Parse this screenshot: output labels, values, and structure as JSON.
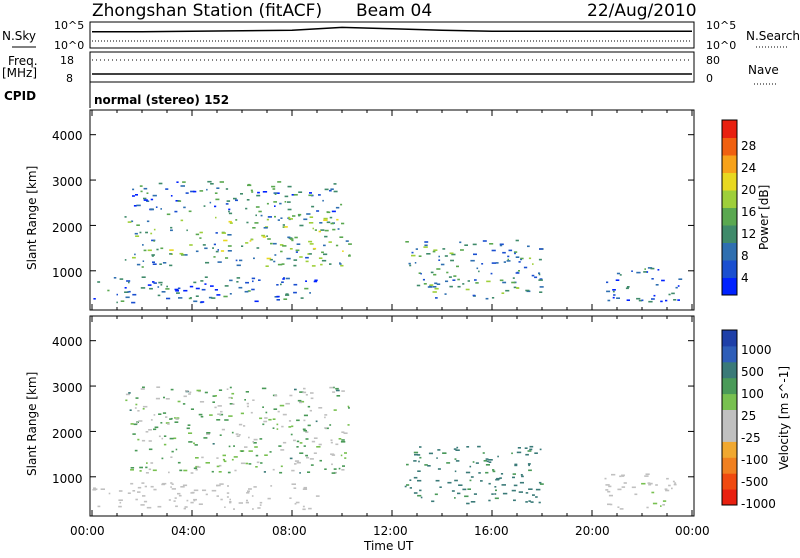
{
  "header": {
    "station": "Zhongshan Station (fitACF)",
    "beam": "Beam 04",
    "date": "22/Aug/2010"
  },
  "strips": {
    "nsky_label": "N.Sky",
    "nsky_tick_hi": "10^5",
    "nsky_tick_lo": "10^0",
    "nsearch_label": "N.Search",
    "nsearch_tick_hi": "10^5",
    "nsearch_tick_lo": "10^0",
    "freq_label": "Freq.",
    "freq_unit": "[MHz]",
    "freq_tick_hi": "18",
    "freq_tick_lo": "8",
    "nave_label": "Nave",
    "nave_tick_hi": "80",
    "nave_tick_lo": "0",
    "cpid_label": "CPID",
    "cpid_text": "normal (stereo) 152"
  },
  "axes": {
    "x_label": "Time UT",
    "y_label": "Slant Range [km]",
    "x_ticks": [
      "00:00",
      "04:00",
      "08:00",
      "12:00",
      "16:00",
      "20:00",
      "00:00"
    ],
    "y_ticks": [
      "4000",
      "3000",
      "2000",
      "1000"
    ]
  },
  "power_scale": {
    "label": "Power [dB]",
    "ticks": [
      "28",
      "24",
      "20",
      "16",
      "12",
      "8",
      "4"
    ],
    "colors": [
      "#0022ff",
      "#1a4fd0",
      "#2f6fb0",
      "#3f8a6a",
      "#5aa850",
      "#9ecf3a",
      "#e8d820",
      "#f7a21a",
      "#f06010",
      "#e82010"
    ]
  },
  "velocity_scale": {
    "label": "Velocity [m s^-1]",
    "ticks": [
      "1000",
      "500",
      "100",
      "25",
      "-25",
      "-100",
      "-500",
      "-1000"
    ],
    "colors": [
      "#1f40a8",
      "#2f5eb8",
      "#3a7a78",
      "#4a9a58",
      "#78c050",
      "#c0c0c0",
      "#c0c0c0",
      "#f0a830",
      "#f08020",
      "#f04a10",
      "#e82010"
    ]
  },
  "chart_data": [
    {
      "type": "line",
      "title": "N.Sky / N.Search",
      "x": [
        "00:00",
        "02:00",
        "04:00",
        "06:00",
        "08:00",
        "10:00",
        "12:00",
        "14:00",
        "16:00",
        "18:00",
        "20:00",
        "22:00",
        "24:00"
      ],
      "series": [
        {
          "name": "N.Sky",
          "values_log10": [
            3.4,
            3.4,
            3.5,
            3.6,
            3.7,
            4.3,
            4.0,
            3.7,
            3.5,
            3.5,
            3.5,
            3.5,
            3.5
          ]
        }
      ],
      "ylim": [
        0,
        5
      ]
    },
    {
      "type": "heatmap",
      "title": "Power",
      "xlabel": "Time UT",
      "ylabel": "Slant Range [km]",
      "xlim_hours": [
        0,
        24
      ],
      "ylim_km": [
        180,
        4500
      ],
      "zlabel": "Power [dB]",
      "zlim": [
        0,
        30
      ],
      "regions": [
        {
          "t0": 1.3,
          "t1": 10.3,
          "r0": 1100,
          "r1": 2300,
          "level": 12
        },
        {
          "t0": 1.6,
          "t1": 10.0,
          "r0": 2300,
          "r1": 3000,
          "level": 8
        },
        {
          "t0": 12.5,
          "t1": 18.0,
          "r0": 400,
          "r1": 1700,
          "level": 10
        },
        {
          "t0": 0.0,
          "t1": 9.0,
          "r0": 300,
          "r1": 900,
          "level": 6
        },
        {
          "t0": 20.5,
          "t1": 23.5,
          "r0": 300,
          "r1": 1100,
          "level": 6
        }
      ]
    },
    {
      "type": "heatmap",
      "title": "Velocity",
      "xlabel": "Time UT",
      "ylabel": "Slant Range [km]",
      "xlim_hours": [
        0,
        24
      ],
      "ylim_km": [
        180,
        4500
      ],
      "zlabel": "Velocity [m s^-1]",
      "zlim": [
        -1000,
        1000
      ],
      "regions": [
        {
          "t0": 1.3,
          "t1": 10.3,
          "r0": 1100,
          "r1": 3000,
          "level": 0
        },
        {
          "t0": 12.5,
          "t1": 18.0,
          "r0": 400,
          "r1": 1700,
          "level": 150
        },
        {
          "t0": 0.0,
          "t1": 9.0,
          "r0": 300,
          "r1": 900,
          "level": -200
        },
        {
          "t0": 20.5,
          "t1": 23.5,
          "r0": 300,
          "r1": 1100,
          "level": -100
        }
      ]
    }
  ]
}
